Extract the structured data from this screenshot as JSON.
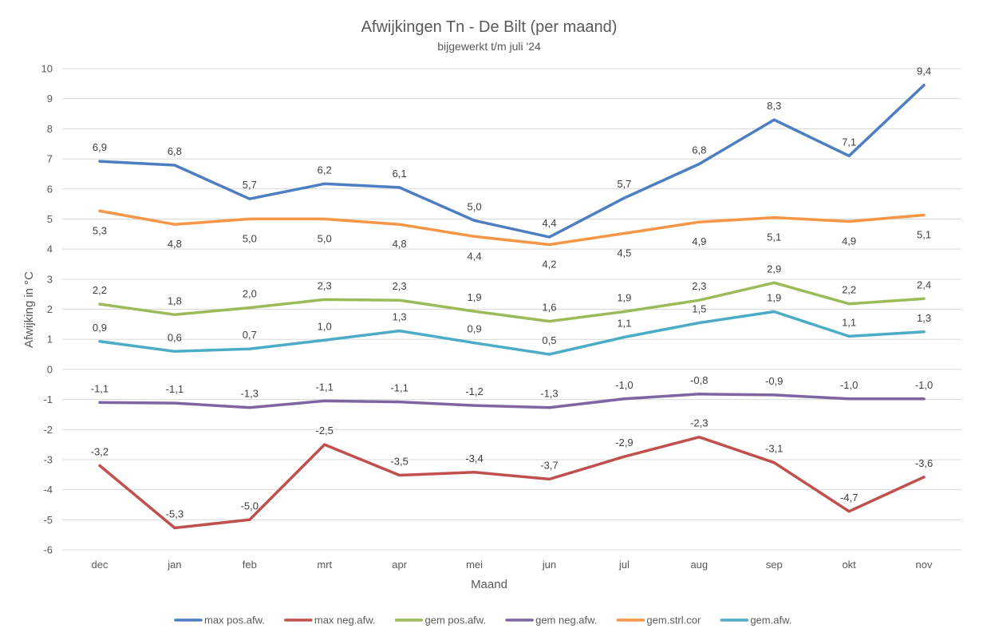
{
  "chart_data": {
    "type": "line",
    "title": "Afwijkingen Tn - De Bilt (per maand)",
    "subtitle": "bijgewerkt t/m juli '24",
    "xlabel": "Maand",
    "ylabel": "Afwijking in °C",
    "ylim": [
      -6,
      10
    ],
    "yticks": [
      "10",
      "9",
      "8",
      "7",
      "6",
      "5",
      "4",
      "3",
      "2",
      "1",
      "0",
      "-1",
      "-2",
      "-3",
      "-4",
      "-5",
      "-6"
    ],
    "grid": true,
    "legend_position": "bottom",
    "categories": [
      "dec",
      "jan",
      "feb",
      "mrt",
      "apr",
      "mei",
      "jun",
      "jul",
      "aug",
      "sep",
      "okt",
      "nov"
    ],
    "series": [
      {
        "name": "max pos.afw.",
        "color": "#4e7ec2",
        "values": [
          6.92,
          6.79,
          5.67,
          6.17,
          6.05,
          4.95,
          4.4,
          5.7,
          6.83,
          8.3,
          7.1,
          9.45
        ],
        "labels": [
          "6,9",
          "6,8",
          "5,7",
          "6,2",
          "6,1",
          "5,0",
          "4,4",
          "5,7",
          "6,8",
          "8,3",
          "7,1",
          "9,4"
        ],
        "label_position": "above"
      },
      {
        "name": "max neg.afw.",
        "color": "#c0504d",
        "values": [
          -3.2,
          -5.27,
          -5.0,
          -2.5,
          -3.52,
          -3.42,
          -3.65,
          -2.9,
          -2.25,
          -3.1,
          -4.72,
          -3.58
        ],
        "labels": [
          "-3,2",
          "-5,3",
          "-5,0",
          "-2,5",
          "-3,5",
          "-3,4",
          "-3,7",
          "-2,9",
          "-2,3",
          "-3,1",
          "-4,7",
          "-3,6"
        ],
        "label_position": "above"
      },
      {
        "name": "gem pos.afw.",
        "color": "#9bbb59",
        "values": [
          2.17,
          1.82,
          2.05,
          2.32,
          2.3,
          1.93,
          1.6,
          1.92,
          2.3,
          2.88,
          2.18,
          2.35
        ],
        "labels": [
          "2,2",
          "1,8",
          "2,0",
          "2,3",
          "2,3",
          "1,9",
          "1,6",
          "1,9",
          "2,3",
          "2,9",
          "2,2",
          "2,4"
        ],
        "label_position": "above"
      },
      {
        "name": "gem neg.afw.",
        "color": "#8064a2",
        "values": [
          -1.1,
          -1.12,
          -1.27,
          -1.05,
          -1.08,
          -1.2,
          -1.27,
          -0.98,
          -0.82,
          -0.85,
          -0.98,
          -0.98
        ],
        "labels": [
          "-1,1",
          "-1,1",
          "-1,3",
          "-1,1",
          "-1,1",
          "-1,2",
          "-1,3",
          "-1,0",
          "-0,8",
          "-0,9",
          "-1,0",
          "-1,0"
        ],
        "label_position": "above"
      },
      {
        "name": "gem.strl.cor",
        "color": "#f79646",
        "values": [
          5.27,
          4.82,
          5.0,
          5.0,
          4.82,
          4.42,
          4.15,
          4.52,
          4.9,
          5.05,
          4.92,
          5.13
        ],
        "labels": [
          "5,3",
          "4,8",
          "5,0",
          "5,0",
          "4,8",
          "4,4",
          "4,2",
          "4,5",
          "4,9",
          "5,1",
          "4,9",
          "5,1"
        ],
        "label_position": "below"
      },
      {
        "name": "gem.afw.",
        "color": "#4bacc6",
        "values": [
          0.93,
          0.6,
          0.68,
          0.97,
          1.28,
          0.88,
          0.5,
          1.07,
          1.55,
          1.92,
          1.1,
          1.25
        ],
        "labels": [
          "0,9",
          "0,6",
          "0,7",
          "1,0",
          "1,3",
          "0,9",
          "0,5",
          "1,1",
          "1,5",
          "1,9",
          "1,1",
          "1,3"
        ],
        "label_position": "above"
      }
    ]
  }
}
